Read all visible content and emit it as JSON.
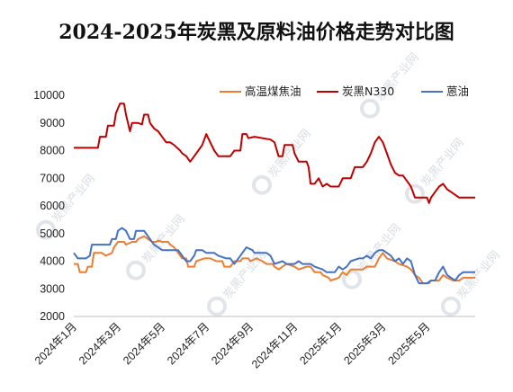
{
  "title": "2024-2025年炭黑及原料油价格走势对比图",
  "watermark": "炭黑产业网",
  "chart_data": {
    "type": "line",
    "title": "2024-2025年炭黑及原料油价格走势对比图",
    "xlabel": "",
    "ylabel": "",
    "ylim": [
      2000,
      10000
    ],
    "yticks": [
      2000,
      3000,
      4000,
      5000,
      6000,
      7000,
      8000,
      9000,
      10000
    ],
    "xlim": [
      0,
      100
    ],
    "xticks": [
      {
        "label": "2024年1月",
        "x": 0
      },
      {
        "label": "2024年3月",
        "x": 11.0
      },
      {
        "label": "2024年5月",
        "x": 22.0
      },
      {
        "label": "2024年7月",
        "x": 33.0
      },
      {
        "label": "2024年9月",
        "x": 44.0
      },
      {
        "label": "2024年11月",
        "x": 55.0
      },
      {
        "label": "2025年1月",
        "x": 66.0
      },
      {
        "label": "2025年3月",
        "x": 77.0
      },
      {
        "label": "2025年5月",
        "x": 88.0
      }
    ],
    "grid": false,
    "legend_position": "top-right",
    "series": [
      {
        "name": "高温煤焦油",
        "color": "#ED7D31",
        "points": [
          [
            0,
            3900
          ],
          [
            1,
            3900
          ],
          [
            1.5,
            3600
          ],
          [
            3,
            3600
          ],
          [
            3.5,
            3800
          ],
          [
            4.5,
            3800
          ],
          [
            5,
            4300
          ],
          [
            7,
            4300
          ],
          [
            8,
            4200
          ],
          [
            9.5,
            4300
          ],
          [
            10,
            4500
          ],
          [
            11,
            4700
          ],
          [
            12.5,
            4700
          ],
          [
            13,
            4600
          ],
          [
            14.5,
            4700
          ],
          [
            15.5,
            4700
          ],
          [
            16,
            4800
          ],
          [
            17.5,
            4900
          ],
          [
            18.5,
            4800
          ],
          [
            19.5,
            4700
          ],
          [
            20.5,
            4700
          ],
          [
            21,
            4750
          ],
          [
            22,
            4700
          ],
          [
            23.5,
            4700
          ],
          [
            24,
            4600
          ],
          [
            25,
            4500
          ],
          [
            26,
            4300
          ],
          [
            27,
            4100
          ],
          [
            28,
            4100
          ],
          [
            28.5,
            3800
          ],
          [
            30,
            3800
          ],
          [
            30.5,
            4000
          ],
          [
            32.5,
            4100
          ],
          [
            34,
            4100
          ],
          [
            35.5,
            4000
          ],
          [
            37,
            4000
          ],
          [
            37.5,
            3800
          ],
          [
            39,
            3800
          ],
          [
            40,
            4000
          ],
          [
            41.5,
            4000
          ],
          [
            42,
            4100
          ],
          [
            43.5,
            4100
          ],
          [
            44,
            4000
          ],
          [
            45.5,
            4100
          ],
          [
            47,
            4000
          ],
          [
            48,
            3900
          ],
          [
            49.5,
            3900
          ],
          [
            50,
            3800
          ],
          [
            51,
            3700
          ],
          [
            52,
            3800
          ],
          [
            53,
            3900
          ],
          [
            55,
            3800
          ],
          [
            56,
            3700
          ],
          [
            58,
            3800
          ],
          [
            59,
            3800
          ],
          [
            60,
            3600
          ],
          [
            61.5,
            3600
          ],
          [
            62,
            3500
          ],
          [
            63.5,
            3400
          ],
          [
            64,
            3300
          ],
          [
            66,
            3400
          ],
          [
            67,
            3600
          ],
          [
            68,
            3500
          ],
          [
            69,
            3700
          ],
          [
            72,
            3700
          ],
          [
            73,
            3800
          ],
          [
            75,
            3800
          ],
          [
            76,
            4100
          ],
          [
            77,
            4300
          ],
          [
            78,
            4100
          ],
          [
            80,
            4000
          ],
          [
            81,
            3900
          ],
          [
            83,
            3800
          ],
          [
            84,
            3700
          ],
          [
            85,
            3500
          ],
          [
            86,
            3400
          ],
          [
            87,
            3200
          ],
          [
            88.5,
            3200
          ],
          [
            89,
            3300
          ],
          [
            91,
            3300
          ],
          [
            92,
            3500
          ],
          [
            93,
            3400
          ],
          [
            94.5,
            3300
          ],
          [
            96,
            3300
          ],
          [
            97,
            3400
          ],
          [
            100,
            3400
          ]
        ]
      },
      {
        "name": "炭黑N330",
        "color": "#C00000",
        "points": [
          [
            0,
            8100
          ],
          [
            6,
            8100
          ],
          [
            6.5,
            8500
          ],
          [
            8,
            8500
          ],
          [
            8.5,
            8900
          ],
          [
            10,
            8900
          ],
          [
            10.5,
            9350
          ],
          [
            11.5,
            9700
          ],
          [
            12.5,
            9700
          ],
          [
            13,
            9300
          ],
          [
            13.5,
            9000
          ],
          [
            14,
            8700
          ],
          [
            14.5,
            9000
          ],
          [
            16,
            9000
          ],
          [
            17,
            8950
          ],
          [
            17.5,
            9300
          ],
          [
            18.5,
            9300
          ],
          [
            19,
            9000
          ],
          [
            20,
            8800
          ],
          [
            21,
            8700
          ],
          [
            22,
            8500
          ],
          [
            23,
            8300
          ],
          [
            24,
            8300
          ],
          [
            25,
            8200
          ],
          [
            26.5,
            8000
          ],
          [
            27,
            7900
          ],
          [
            28,
            7800
          ],
          [
            29,
            7600
          ],
          [
            30,
            7800
          ],
          [
            31,
            8000
          ],
          [
            32,
            8200
          ],
          [
            33,
            8600
          ],
          [
            34,
            8300
          ],
          [
            35,
            8000
          ],
          [
            36,
            7800
          ],
          [
            39,
            7800
          ],
          [
            40,
            8000
          ],
          [
            41.5,
            8000
          ],
          [
            42,
            8600
          ],
          [
            43,
            8600
          ],
          [
            43.5,
            8450
          ],
          [
            45,
            8500
          ],
          [
            49,
            8400
          ],
          [
            50,
            8300
          ],
          [
            51,
            7800
          ],
          [
            52,
            7800
          ],
          [
            52.5,
            8200
          ],
          [
            54.5,
            8200
          ],
          [
            55,
            7900
          ],
          [
            56,
            7600
          ],
          [
            58,
            7600
          ],
          [
            58.5,
            7400
          ],
          [
            59,
            6800
          ],
          [
            60,
            6800
          ],
          [
            61,
            7000
          ],
          [
            62,
            6700
          ],
          [
            63,
            6800
          ],
          [
            64,
            6700
          ],
          [
            66,
            6700
          ],
          [
            67,
            7000
          ],
          [
            69,
            7000
          ],
          [
            70,
            7400
          ],
          [
            72,
            7400
          ],
          [
            73,
            7600
          ],
          [
            74,
            7900
          ],
          [
            75,
            8300
          ],
          [
            76,
            8500
          ],
          [
            77,
            8300
          ],
          [
            78,
            7900
          ],
          [
            79,
            7500
          ],
          [
            80,
            7200
          ],
          [
            81,
            7100
          ],
          [
            82,
            7100
          ],
          [
            83,
            6900
          ],
          [
            84,
            6700
          ],
          [
            85,
            6300
          ],
          [
            88,
            6300
          ],
          [
            88.5,
            6100
          ],
          [
            89,
            6300
          ],
          [
            90,
            6500
          ],
          [
            91,
            6700
          ],
          [
            92,
            6800
          ],
          [
            93,
            6600
          ],
          [
            94,
            6500
          ],
          [
            95,
            6400
          ],
          [
            96,
            6300
          ],
          [
            100,
            6300
          ]
        ]
      },
      {
        "name": "蒽油",
        "color": "#4472C4",
        "points": [
          [
            0,
            4300
          ],
          [
            1,
            4100
          ],
          [
            3,
            4100
          ],
          [
            4,
            4200
          ],
          [
            4.5,
            4600
          ],
          [
            9,
            4600
          ],
          [
            9.5,
            4800
          ],
          [
            10.5,
            4800
          ],
          [
            11,
            5100
          ],
          [
            12,
            5200
          ],
          [
            13,
            5100
          ],
          [
            14,
            4800
          ],
          [
            15,
            4800
          ],
          [
            15.5,
            5100
          ],
          [
            17.5,
            5100
          ],
          [
            18,
            5000
          ],
          [
            19,
            4800
          ],
          [
            20,
            4600
          ],
          [
            21,
            4500
          ],
          [
            22,
            4400
          ],
          [
            26,
            4400
          ],
          [
            27,
            4200
          ],
          [
            28,
            4000
          ],
          [
            29,
            4000
          ],
          [
            30,
            4200
          ],
          [
            30.5,
            4400
          ],
          [
            32,
            4400
          ],
          [
            33,
            4300
          ],
          [
            35,
            4300
          ],
          [
            36,
            4200
          ],
          [
            38,
            4100
          ],
          [
            39,
            4100
          ],
          [
            40,
            3900
          ],
          [
            41,
            4100
          ],
          [
            42,
            4300
          ],
          [
            43,
            4500
          ],
          [
            44.5,
            4400
          ],
          [
            45,
            4300
          ],
          [
            48,
            4300
          ],
          [
            49,
            4200
          ],
          [
            50,
            3900
          ],
          [
            52,
            4000
          ],
          [
            53,
            3900
          ],
          [
            55,
            3900
          ],
          [
            56,
            4000
          ],
          [
            57,
            3900
          ],
          [
            59,
            3900
          ],
          [
            60,
            3800
          ],
          [
            62,
            3700
          ],
          [
            63,
            3600
          ],
          [
            65,
            3600
          ],
          [
            66,
            3800
          ],
          [
            67,
            3700
          ],
          [
            68,
            3800
          ],
          [
            69,
            4000
          ],
          [
            71,
            4100
          ],
          [
            72,
            4100
          ],
          [
            73,
            4200
          ],
          [
            74,
            4100
          ],
          [
            75,
            4300
          ],
          [
            76,
            4400
          ],
          [
            77,
            4400
          ],
          [
            78,
            4300
          ],
          [
            79,
            4200
          ],
          [
            80,
            4000
          ],
          [
            81,
            4100
          ],
          [
            82,
            3900
          ],
          [
            83,
            4100
          ],
          [
            84,
            4000
          ],
          [
            85,
            3500
          ],
          [
            86,
            3200
          ],
          [
            88,
            3200
          ],
          [
            89,
            3300
          ],
          [
            90,
            3300
          ],
          [
            91,
            3600
          ],
          [
            92,
            3800
          ],
          [
            93,
            3500
          ],
          [
            94,
            3400
          ],
          [
            95,
            3300
          ],
          [
            96,
            3500
          ],
          [
            97,
            3600
          ],
          [
            100,
            3600
          ]
        ]
      }
    ]
  }
}
